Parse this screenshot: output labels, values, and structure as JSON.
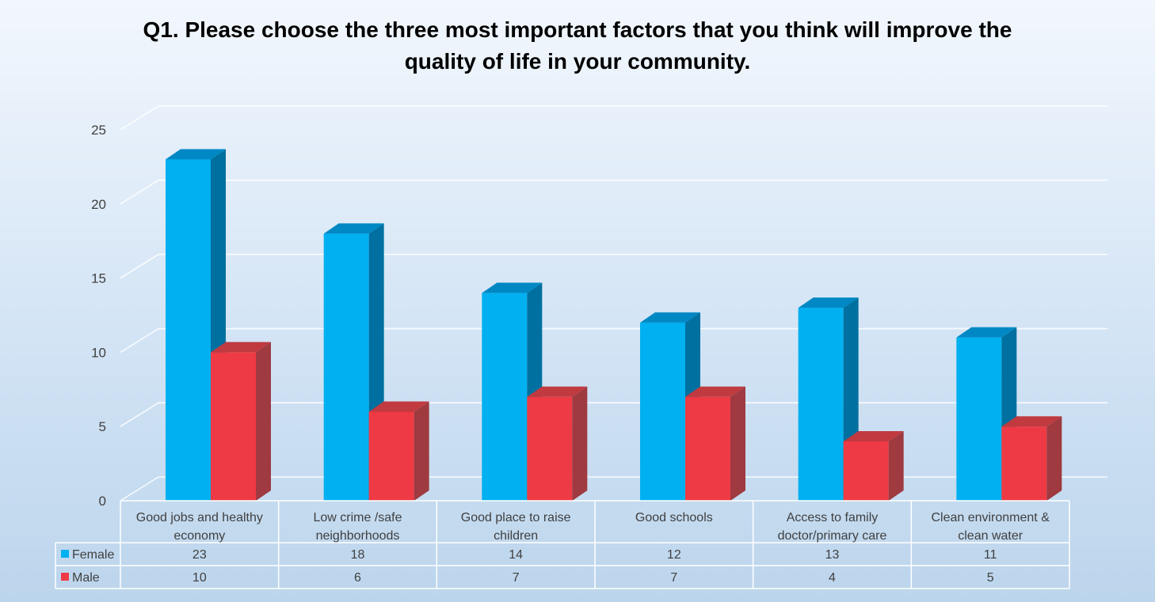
{
  "chart_data": {
    "type": "bar",
    "title": "Q1. Please choose the three most important factors that you think will improve the quality of life in your community.",
    "categories": [
      [
        "Good jobs and healthy",
        "economy"
      ],
      [
        "Low crime /safe",
        "neighborhoods"
      ],
      [
        "Good place to raise",
        "children"
      ],
      [
        "Good schools"
      ],
      [
        "Access to family",
        "doctor/primary care"
      ],
      [
        "Clean environment &",
        "clean water"
      ]
    ],
    "series": [
      {
        "name": "Female",
        "values": [
          23,
          18,
          14,
          12,
          13,
          11
        ],
        "color": "#00b0f0",
        "side_color": "#0070a0",
        "top_color": "#0088c4"
      },
      {
        "name": "Male",
        "values": [
          10,
          6,
          7,
          7,
          4,
          5
        ],
        "color": "#ee3a44",
        "side_color": "#9e3a40",
        "top_color": "#c03a40"
      }
    ],
    "y_ticks": [
      "0",
      "5",
      "10",
      "15",
      "20",
      "25"
    ],
    "ylim": [
      0,
      25
    ],
    "style": "3d-clustered-column",
    "data_table": true,
    "grid": true
  }
}
